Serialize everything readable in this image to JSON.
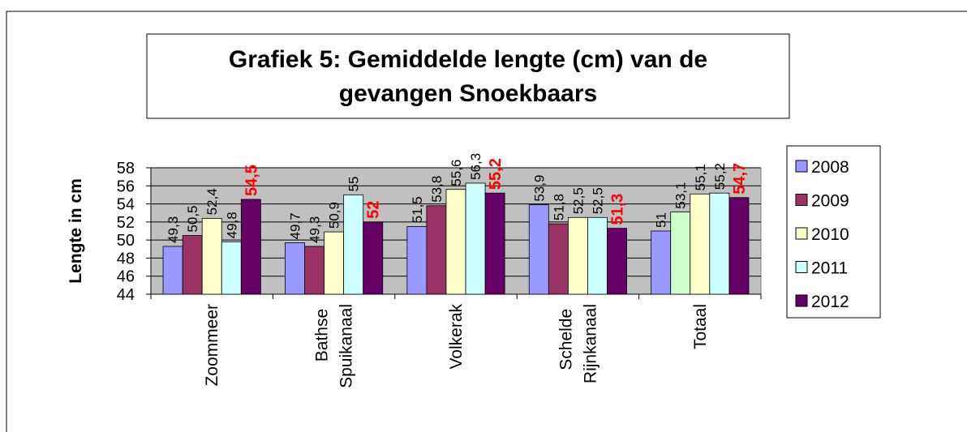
{
  "chart_data": {
    "type": "bar",
    "title": [
      "Grafiek 5: Gemiddelde lengte (cm) van de",
      "gevangen Snoekbaars"
    ],
    "y_label": "Lengte in cm",
    "categories": [
      "Zoommeer",
      "Bathse Spuikanaal",
      "Volkerak",
      "Schelde Rijnkanaal",
      "Totaal"
    ],
    "series": [
      {
        "name": "2008",
        "color": "#9999ff",
        "values": [
          49.3,
          49.7,
          51.5,
          53.9,
          51
        ],
        "value_labels": [
          "49,3",
          "49,7",
          "51,5",
          "53,9",
          "51"
        ]
      },
      {
        "name": "2009",
        "color": "#993366",
        "colors": [
          "#993366",
          "#993366",
          "#993366",
          "#993366",
          "#ccffcc"
        ],
        "values": [
          50.5,
          49.3,
          53.8,
          51.8,
          53.1
        ],
        "value_labels": [
          "50,5",
          "49,3",
          "53,8",
          "51,8",
          "53,1"
        ]
      },
      {
        "name": "2010",
        "color": "#ffffcc",
        "values": [
          52.4,
          50.9,
          55.6,
          52.5,
          55.1
        ],
        "value_labels": [
          "52,4",
          "50,9",
          "55,6",
          "52,5",
          "55,1"
        ]
      },
      {
        "name": "2011",
        "color": "#ccffff",
        "values": [
          49.8,
          55,
          56.3,
          52.5,
          55.2
        ],
        "value_labels": [
          "49,8",
          "55",
          "56,3",
          "52,5",
          "55,2"
        ]
      },
      {
        "name": "2012",
        "color": "#660066",
        "label_color": "#ff0000",
        "values": [
          54.5,
          52,
          55.2,
          51.3,
          54.7
        ],
        "value_labels": [
          "54,5",
          "52",
          "55,2",
          "51,3",
          "54,7"
        ]
      }
    ],
    "ylim": [
      44,
      58
    ],
    "yticks": [
      44,
      46,
      48,
      50,
      52,
      54,
      56,
      58
    ],
    "grid": true,
    "legend": "right"
  }
}
